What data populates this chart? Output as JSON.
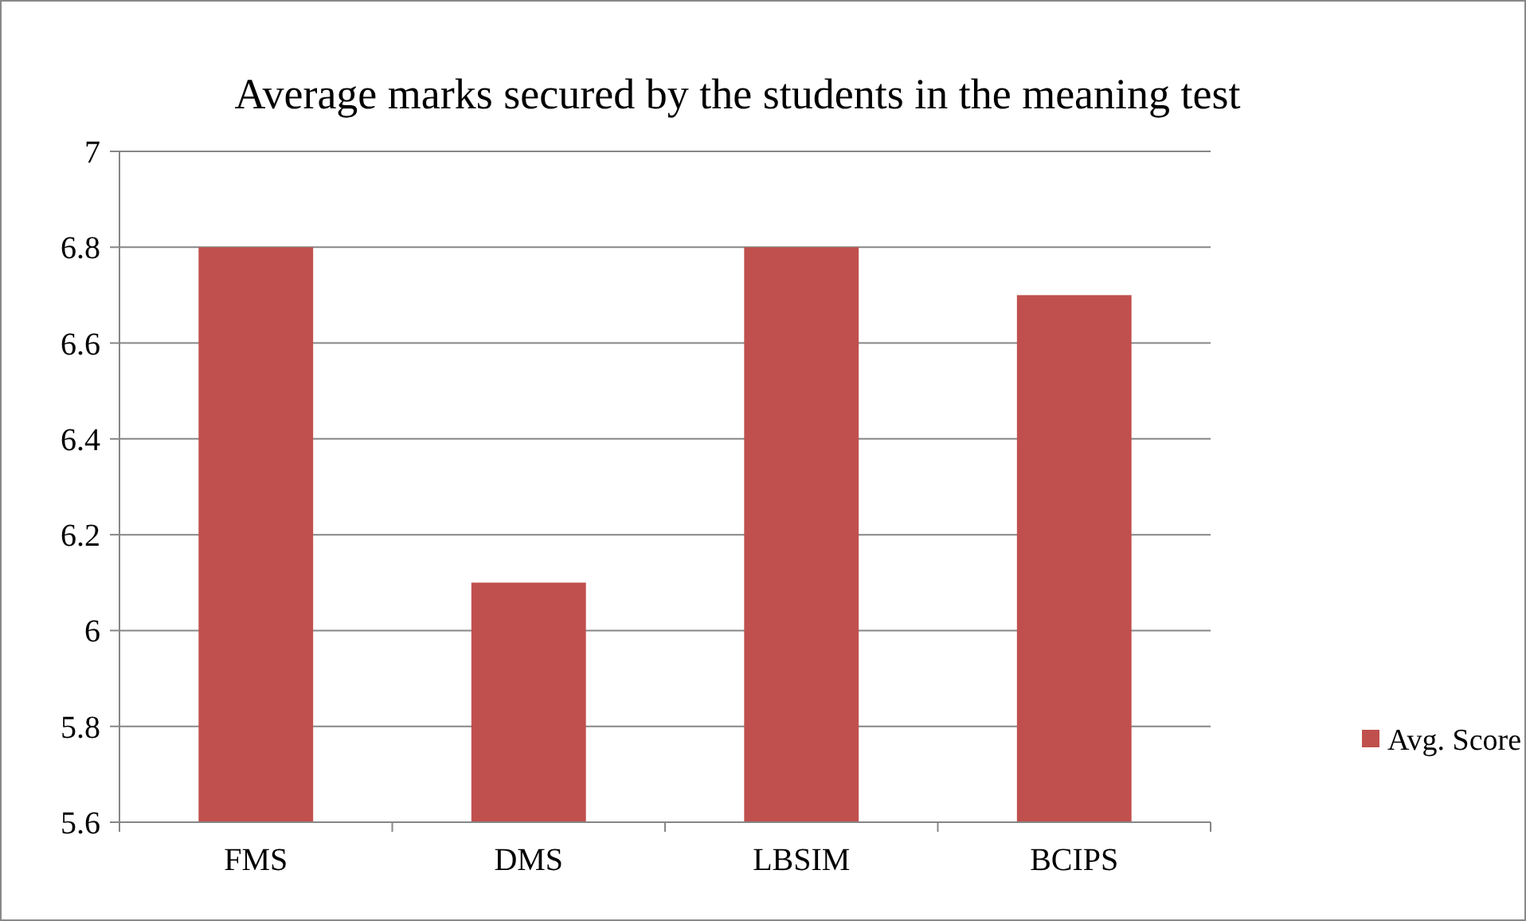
{
  "chart_data": {
    "type": "bar",
    "title": "Average marks secured by the students in the meaning test",
    "categories": [
      "FMS",
      "DMS",
      "LBSIM",
      "BCIPS"
    ],
    "series": [
      {
        "name": "Avg. Score",
        "color": "#c0504d",
        "values": [
          6.8,
          6.1,
          6.8,
          6.7
        ]
      }
    ],
    "ylim": [
      5.6,
      7
    ],
    "yticks": [
      5.6,
      5.8,
      6,
      6.2,
      6.4,
      6.6,
      6.8,
      7
    ],
    "grid": "y",
    "legend": "right"
  }
}
